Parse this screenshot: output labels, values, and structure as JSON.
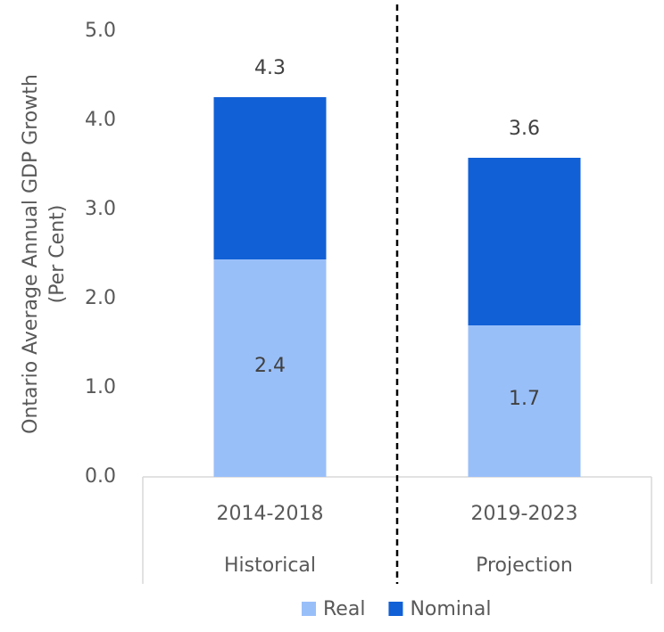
{
  "chart_data": {
    "type": "bar",
    "mode": "overlap",
    "y_label": [
      "Ontario Average Annual GDP Growth",
      "(Per Cent)"
    ],
    "categories": [
      "2014-2018",
      "2019-2023"
    ],
    "groups": [
      "Historical",
      "Projection"
    ],
    "series": [
      {
        "name": "Nominal",
        "color": "#1160d6",
        "values": [
          4.26,
          3.58
        ],
        "value_labels": [
          "4.3",
          "3.6"
        ]
      },
      {
        "name": "Real",
        "color": "#99bff9",
        "values": [
          2.44,
          1.7
        ],
        "value_labels": [
          "2.4",
          "1.7"
        ]
      }
    ],
    "legend_order": [
      1,
      0
    ],
    "ylim": [
      0,
      5
    ],
    "yticks": [
      {
        "value": 0,
        "label": "0.0"
      },
      {
        "value": 1,
        "label": "1.0"
      },
      {
        "value": 2,
        "label": "2.0"
      },
      {
        "value": 3,
        "label": "3.0"
      },
      {
        "value": 4,
        "label": "4.0"
      },
      {
        "value": 5,
        "label": "5.0"
      }
    ],
    "grid": false
  }
}
